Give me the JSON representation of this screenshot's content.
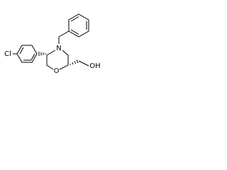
{
  "atoms": [
    {
      "label": "Cl"
    },
    {
      "label": "N"
    },
    {
      "label": "O"
    },
    {
      "label": "OH"
    }
  ]
}
